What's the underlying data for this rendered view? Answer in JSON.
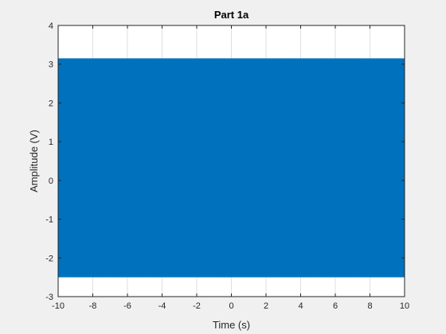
{
  "chart_data": {
    "type": "line",
    "title": "Part 1a",
    "xlabel": "Time (s)",
    "ylabel": "Amplitude (V)",
    "xlim": [
      -10,
      10
    ],
    "ylim": [
      -3,
      4
    ],
    "xticks": [
      -10,
      -8,
      -6,
      -4,
      -2,
      0,
      2,
      4,
      6,
      8,
      10
    ],
    "yticks": [
      -3,
      -2,
      -1,
      0,
      1,
      2,
      3,
      4
    ],
    "xtick_labels": [
      "-10",
      "-8",
      "-6",
      "-4",
      "-2",
      "0",
      "2",
      "4",
      "6",
      "8",
      "10"
    ],
    "ytick_labels": [
      "-3",
      "-2",
      "-1",
      "0",
      "1",
      "2",
      "3",
      "4"
    ],
    "grid": true,
    "series": [
      {
        "color": "#0072BD",
        "signal": "dense oscillation filling the full time range",
        "x_range": [
          -10,
          10
        ],
        "y_max": 3.15,
        "y_min": -2.5
      }
    ]
  }
}
